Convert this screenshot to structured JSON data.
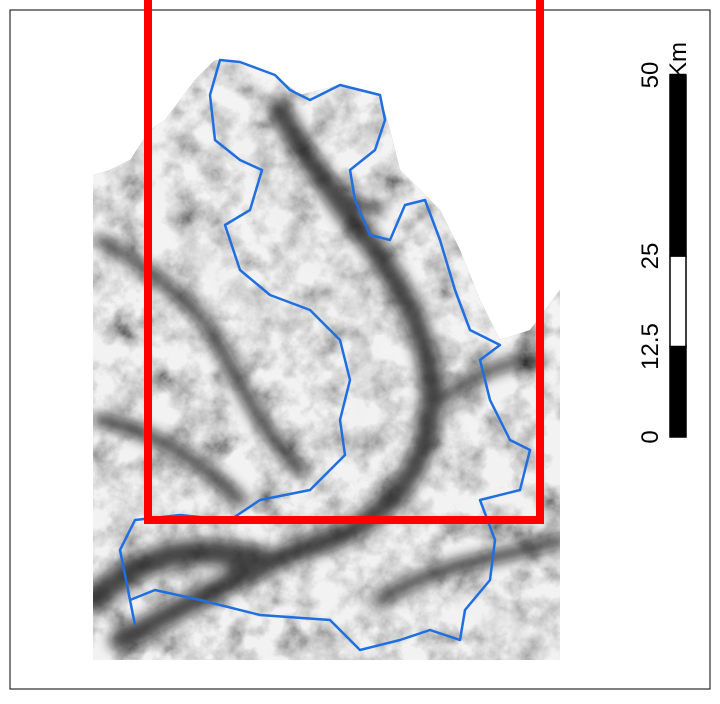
{
  "scale_bar": {
    "ticks": [
      0,
      12.5,
      25,
      50
    ],
    "unit": "Km"
  }
}
